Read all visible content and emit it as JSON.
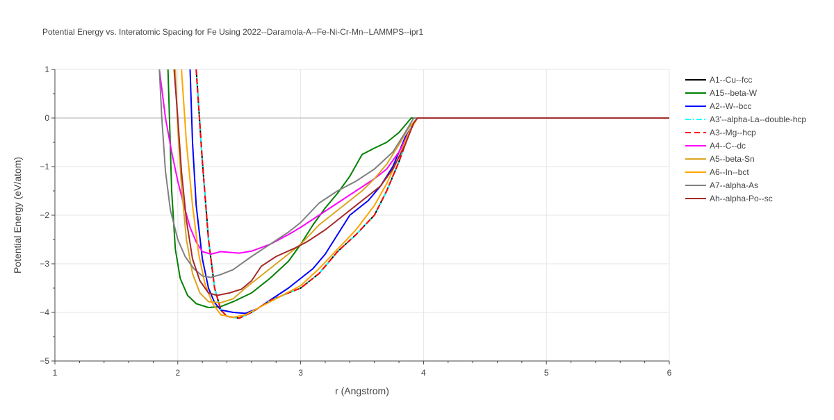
{
  "chart_data": {
    "type": "line",
    "title": "Potential Energy vs. Interatomic Spacing for Fe Using 2022--Daramola-A--Fe-Ni-Cr-Mn--LAMMPS--ipr1",
    "xlabel": "r (Angstrom)",
    "ylabel": "Potential Energy (eV/atom)",
    "xlim": [
      1,
      6
    ],
    "ylim": [
      -5,
      1
    ],
    "x_ticks": [
      "1",
      "2",
      "3",
      "4",
      "5",
      "6"
    ],
    "y_ticks": [
      "1",
      "0",
      "−1",
      "−2",
      "−3",
      "−4",
      "−5"
    ],
    "grid": true,
    "legend_position": "right",
    "series": [
      {
        "name": "A1--Cu--fcc",
        "color": "#000000",
        "dash": "solid",
        "points": [
          [
            2.15,
            1.0
          ],
          [
            2.2,
            -0.9
          ],
          [
            2.25,
            -2.5
          ],
          [
            2.3,
            -3.5
          ],
          [
            2.35,
            -3.95
          ],
          [
            2.4,
            -4.08
          ],
          [
            2.5,
            -4.12
          ],
          [
            2.6,
            -4.0
          ],
          [
            2.75,
            -3.76
          ],
          [
            2.9,
            -3.6
          ],
          [
            3.0,
            -3.5
          ],
          [
            3.15,
            -3.2
          ],
          [
            3.3,
            -2.75
          ],
          [
            3.45,
            -2.4
          ],
          [
            3.6,
            -2.0
          ],
          [
            3.7,
            -1.5
          ],
          [
            3.8,
            -0.9
          ],
          [
            3.9,
            -0.2
          ],
          [
            3.95,
            0.0
          ],
          [
            4.0,
            0.0
          ],
          [
            6.0,
            0.0
          ]
        ]
      },
      {
        "name": "A15--beta-W",
        "color": "#008000",
        "dash": "solid",
        "points": [
          [
            1.92,
            1.0
          ],
          [
            1.95,
            -1.5
          ],
          [
            1.98,
            -2.7
          ],
          [
            2.02,
            -3.3
          ],
          [
            2.08,
            -3.65
          ],
          [
            2.15,
            -3.82
          ],
          [
            2.25,
            -3.9
          ],
          [
            2.35,
            -3.88
          ],
          [
            2.45,
            -3.78
          ],
          [
            2.6,
            -3.6
          ],
          [
            2.75,
            -3.3
          ],
          [
            2.9,
            -2.95
          ],
          [
            3.0,
            -2.6
          ],
          [
            3.1,
            -2.2
          ],
          [
            3.2,
            -1.85
          ],
          [
            3.3,
            -1.55
          ],
          [
            3.4,
            -1.2
          ],
          [
            3.5,
            -0.75
          ],
          [
            3.6,
            -0.62
          ],
          [
            3.7,
            -0.5
          ],
          [
            3.8,
            -0.3
          ],
          [
            3.9,
            0.0
          ],
          [
            4.0,
            0.0
          ],
          [
            6.0,
            0.0
          ]
        ]
      },
      {
        "name": "A2--W--bcc",
        "color": "#0000ff",
        "dash": "solid",
        "points": [
          [
            2.1,
            1.0
          ],
          [
            2.12,
            -0.5
          ],
          [
            2.15,
            -1.8
          ],
          [
            2.2,
            -2.9
          ],
          [
            2.25,
            -3.5
          ],
          [
            2.3,
            -3.8
          ],
          [
            2.35,
            -3.95
          ],
          [
            2.45,
            -4.0
          ],
          [
            2.55,
            -4.02
          ],
          [
            2.65,
            -3.92
          ],
          [
            2.75,
            -3.75
          ],
          [
            2.9,
            -3.5
          ],
          [
            3.0,
            -3.3
          ],
          [
            3.1,
            -3.1
          ],
          [
            3.2,
            -2.8
          ],
          [
            3.3,
            -2.4
          ],
          [
            3.4,
            -2.0
          ],
          [
            3.55,
            -1.7
          ],
          [
            3.65,
            -1.4
          ],
          [
            3.75,
            -1.0
          ],
          [
            3.85,
            -0.4
          ],
          [
            3.95,
            0.0
          ],
          [
            4.0,
            0.0
          ],
          [
            6.0,
            0.0
          ]
        ]
      },
      {
        "name": "A3'--alpha-La--double-hcp",
        "color": "#00ffff",
        "dash": "dashdot",
        "points": [
          [
            2.15,
            1.0
          ],
          [
            2.2,
            -0.9
          ],
          [
            2.25,
            -2.5
          ],
          [
            2.3,
            -3.5
          ],
          [
            2.35,
            -3.95
          ],
          [
            2.4,
            -4.08
          ],
          [
            2.5,
            -4.12
          ],
          [
            2.6,
            -4.0
          ],
          [
            2.75,
            -3.76
          ],
          [
            2.9,
            -3.6
          ],
          [
            3.0,
            -3.5
          ],
          [
            3.15,
            -3.2
          ],
          [
            3.3,
            -2.75
          ],
          [
            3.45,
            -2.4
          ],
          [
            3.6,
            -2.0
          ],
          [
            3.7,
            -1.5
          ],
          [
            3.8,
            -0.9
          ],
          [
            3.9,
            -0.2
          ],
          [
            3.95,
            0.0
          ],
          [
            4.0,
            0.0
          ],
          [
            6.0,
            0.0
          ]
        ]
      },
      {
        "name": "A3--Mg--hcp",
        "color": "#ff0000",
        "dash": "dash",
        "points": [
          [
            2.15,
            1.0
          ],
          [
            2.2,
            -0.9
          ],
          [
            2.25,
            -2.5
          ],
          [
            2.3,
            -3.5
          ],
          [
            2.35,
            -3.95
          ],
          [
            2.4,
            -4.08
          ],
          [
            2.5,
            -4.12
          ],
          [
            2.6,
            -4.0
          ],
          [
            2.75,
            -3.76
          ],
          [
            2.9,
            -3.6
          ],
          [
            3.0,
            -3.5
          ],
          [
            3.15,
            -3.2
          ],
          [
            3.3,
            -2.75
          ],
          [
            3.45,
            -2.4
          ],
          [
            3.6,
            -2.0
          ],
          [
            3.7,
            -1.5
          ],
          [
            3.8,
            -0.9
          ],
          [
            3.9,
            -0.2
          ],
          [
            3.95,
            0.0
          ],
          [
            4.0,
            0.0
          ],
          [
            6.0,
            0.0
          ]
        ]
      },
      {
        "name": "A4--C--dc",
        "color": "#ff00ff",
        "dash": "solid",
        "points": [
          [
            1.85,
            1.0
          ],
          [
            1.9,
            0.0
          ],
          [
            1.95,
            -0.7
          ],
          [
            2.0,
            -1.3
          ],
          [
            2.05,
            -1.8
          ],
          [
            2.1,
            -2.25
          ],
          [
            2.15,
            -2.55
          ],
          [
            2.2,
            -2.75
          ],
          [
            2.27,
            -2.8
          ],
          [
            2.35,
            -2.75
          ],
          [
            2.5,
            -2.78
          ],
          [
            2.6,
            -2.74
          ],
          [
            2.75,
            -2.6
          ],
          [
            2.9,
            -2.4
          ],
          [
            3.0,
            -2.25
          ],
          [
            3.15,
            -2.0
          ],
          [
            3.3,
            -1.75
          ],
          [
            3.45,
            -1.5
          ],
          [
            3.6,
            -1.25
          ],
          [
            3.7,
            -1.05
          ],
          [
            3.8,
            -0.7
          ],
          [
            3.88,
            -0.3
          ],
          [
            3.95,
            0.0
          ],
          [
            4.0,
            0.0
          ],
          [
            6.0,
            0.0
          ]
        ]
      },
      {
        "name": "A5--beta-Sn",
        "color": "#daa520",
        "dash": "solid",
        "points": [
          [
            1.98,
            1.0
          ],
          [
            2.0,
            -0.2
          ],
          [
            2.03,
            -1.4
          ],
          [
            2.07,
            -2.5
          ],
          [
            2.12,
            -3.2
          ],
          [
            2.18,
            -3.6
          ],
          [
            2.25,
            -3.78
          ],
          [
            2.35,
            -3.8
          ],
          [
            2.45,
            -3.72
          ],
          [
            2.55,
            -3.5
          ],
          [
            2.7,
            -3.2
          ],
          [
            2.85,
            -2.9
          ],
          [
            3.0,
            -2.6
          ],
          [
            3.15,
            -2.2
          ],
          [
            3.3,
            -1.9
          ],
          [
            3.5,
            -1.5
          ],
          [
            3.6,
            -1.25
          ],
          [
            3.7,
            -0.95
          ],
          [
            3.8,
            -0.55
          ],
          [
            3.88,
            -0.2
          ],
          [
            3.95,
            0.0
          ],
          [
            4.0,
            0.0
          ],
          [
            6.0,
            0.0
          ]
        ]
      },
      {
        "name": "A6--In--bct",
        "color": "#ffa500",
        "dash": "solid",
        "points": [
          [
            2.03,
            1.0
          ],
          [
            2.07,
            -0.5
          ],
          [
            2.12,
            -1.8
          ],
          [
            2.17,
            -2.8
          ],
          [
            2.22,
            -3.4
          ],
          [
            2.28,
            -3.8
          ],
          [
            2.35,
            -4.05
          ],
          [
            2.45,
            -4.1
          ],
          [
            2.55,
            -4.05
          ],
          [
            2.7,
            -3.85
          ],
          [
            2.85,
            -3.65
          ],
          [
            3.0,
            -3.45
          ],
          [
            3.15,
            -3.1
          ],
          [
            3.3,
            -2.7
          ],
          [
            3.45,
            -2.3
          ],
          [
            3.6,
            -1.8
          ],
          [
            3.7,
            -1.35
          ],
          [
            3.8,
            -0.8
          ],
          [
            3.88,
            -0.3
          ],
          [
            3.95,
            0.0
          ],
          [
            4.0,
            0.0
          ],
          [
            6.0,
            0.0
          ]
        ]
      },
      {
        "name": "A7--alpha-As",
        "color": "#808080",
        "dash": "solid",
        "points": [
          [
            1.85,
            1.0
          ],
          [
            1.87,
            0.0
          ],
          [
            1.9,
            -1.1
          ],
          [
            1.94,
            -1.9
          ],
          [
            2.0,
            -2.5
          ],
          [
            2.06,
            -2.85
          ],
          [
            2.13,
            -3.1
          ],
          [
            2.2,
            -3.25
          ],
          [
            2.27,
            -3.28
          ],
          [
            2.35,
            -3.22
          ],
          [
            2.45,
            -3.12
          ],
          [
            2.6,
            -2.85
          ],
          [
            2.75,
            -2.6
          ],
          [
            2.9,
            -2.35
          ],
          [
            3.0,
            -2.15
          ],
          [
            3.15,
            -1.75
          ],
          [
            3.3,
            -1.5
          ],
          [
            3.45,
            -1.3
          ],
          [
            3.6,
            -1.05
          ],
          [
            3.75,
            -0.7
          ],
          [
            3.85,
            -0.3
          ],
          [
            3.92,
            0.0
          ],
          [
            4.0,
            0.0
          ],
          [
            6.0,
            0.0
          ]
        ]
      },
      {
        "name": "Ah--alpha-Po--sc",
        "color": "#a52a2a",
        "dash": "solid",
        "points": [
          [
            1.97,
            1.0
          ],
          [
            2.0,
            0.0
          ],
          [
            2.03,
            -1.1
          ],
          [
            2.07,
            -2.1
          ],
          [
            2.12,
            -2.9
          ],
          [
            2.18,
            -3.35
          ],
          [
            2.25,
            -3.6
          ],
          [
            2.32,
            -3.65
          ],
          [
            2.42,
            -3.6
          ],
          [
            2.52,
            -3.52
          ],
          [
            2.6,
            -3.35
          ],
          [
            2.68,
            -3.05
          ],
          [
            2.8,
            -2.85
          ],
          [
            2.95,
            -2.68
          ],
          [
            3.05,
            -2.55
          ],
          [
            3.2,
            -2.3
          ],
          [
            3.35,
            -2.0
          ],
          [
            3.5,
            -1.7
          ],
          [
            3.65,
            -1.4
          ],
          [
            3.75,
            -1.05
          ],
          [
            3.85,
            -0.55
          ],
          [
            3.92,
            -0.1
          ],
          [
            3.95,
            0.0
          ],
          [
            4.0,
            0.0
          ],
          [
            6.0,
            0.0
          ]
        ]
      }
    ]
  }
}
